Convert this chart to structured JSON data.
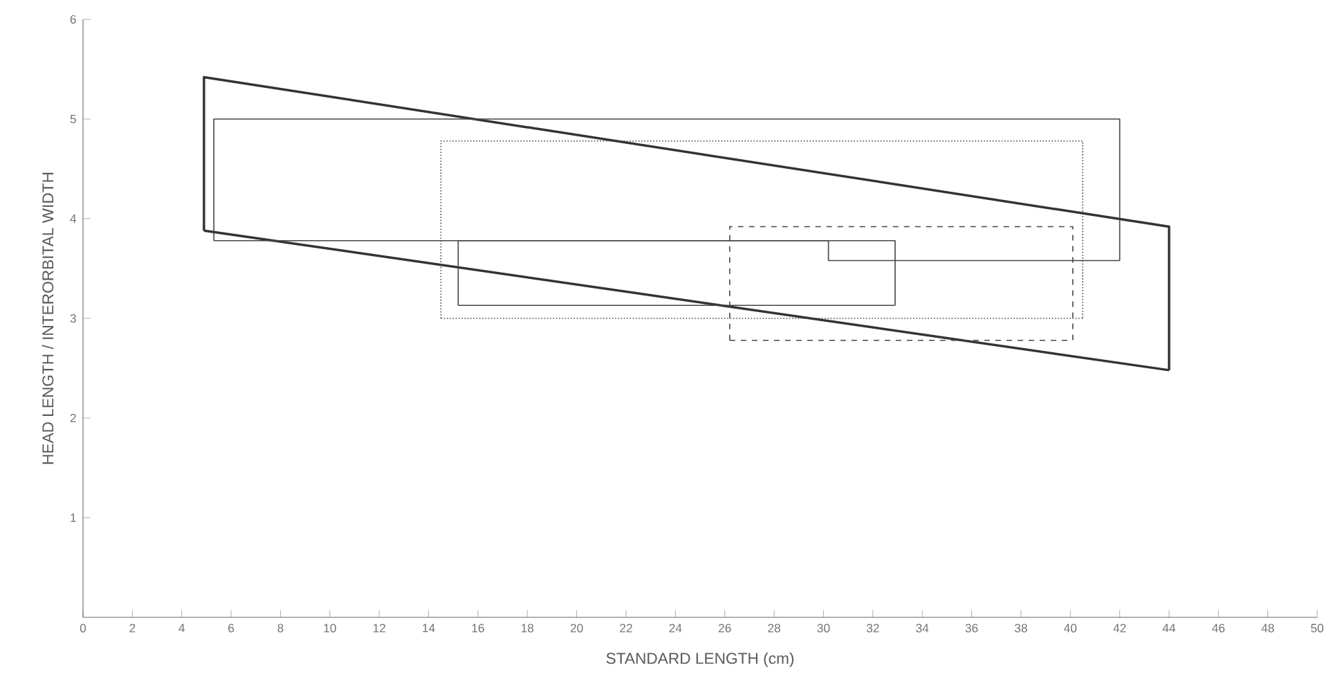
{
  "chart_data": {
    "type": "line",
    "xlabel": "STANDARD LENGTH (cm)",
    "ylabel": "HEAD LENGTH / INTERORBITAL WIDTH",
    "xlim": [
      0,
      50
    ],
    "ylim": [
      0,
      6
    ],
    "xticks": [
      0,
      2,
      4,
      6,
      8,
      10,
      12,
      14,
      16,
      18,
      20,
      22,
      24,
      26,
      28,
      30,
      32,
      34,
      36,
      38,
      40,
      42,
      44,
      46,
      48,
      50
    ],
    "yticks": [
      1,
      2,
      3,
      4,
      5,
      6
    ],
    "grid": false,
    "marker": "none",
    "series": [
      {
        "color": "#333333",
        "line_style": "solid",
        "x": [
          4.9,
          4.9,
          44,
          44
        ],
        "values": [
          3.88,
          5.42,
          3.92,
          2.48
        ]
      },
      {
        "color": "#333333",
        "line_style": "solid",
        "x": [
          4.9,
          44
        ],
        "values": [
          3.88,
          2.48
        ]
      },
      {
        "color": "#444444",
        "line_style": "solid",
        "x": [
          5.3,
          5.3,
          42,
          42
        ],
        "values": [
          3.78,
          5.0,
          5.0,
          3.58
        ]
      },
      {
        "color": "#444444",
        "line_style": "solid",
        "x": [
          5.3,
          30.2,
          30.2,
          42
        ],
        "values": [
          3.78,
          3.78,
          3.58,
          3.58
        ]
      },
      {
        "color": "#444444",
        "line_style": "dotted",
        "x": [
          14.5,
          14.5,
          40.5,
          40.5
        ],
        "values": [
          3.0,
          4.78,
          4.78,
          3.0
        ]
      },
      {
        "color": "#444444",
        "line_style": "dotted",
        "x": [
          14.5,
          40.5
        ],
        "values": [
          3.0,
          3.0
        ]
      },
      {
        "color": "#444444",
        "line_style": "solid",
        "x": [
          15.2,
          15.2,
          32.9,
          32.9
        ],
        "values": [
          3.13,
          3.78,
          3.78,
          3.13
        ]
      },
      {
        "color": "#444444",
        "line_style": "solid",
        "x": [
          15.2,
          32.9
        ],
        "values": [
          3.13,
          3.13
        ]
      },
      {
        "color": "#444444",
        "line_style": "dashed",
        "x": [
          26.2,
          26.2,
          40.1,
          40.1
        ],
        "values": [
          2.78,
          3.92,
          3.92,
          2.78
        ]
      },
      {
        "color": "#444444",
        "line_style": "dashed",
        "x": [
          26.2,
          40.1
        ],
        "values": [
          2.78,
          2.78
        ]
      }
    ]
  }
}
